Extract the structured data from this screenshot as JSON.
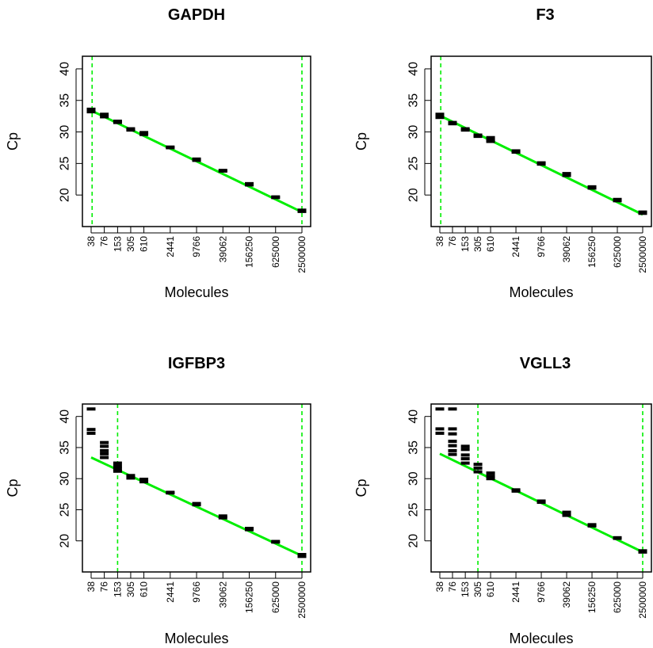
{
  "chart_data": [
    {
      "type": "scatter",
      "title": "GAPDH",
      "xlabel": "Molecules",
      "ylabel": "Cp",
      "x_scale": "log",
      "ylim": [
        15,
        42
      ],
      "y_ticks": [
        20,
        25,
        30,
        35,
        40
      ],
      "x_ticks": [
        "38",
        "76",
        "153",
        "305",
        "610",
        "2441",
        "9766",
        "39062",
        "156250",
        "625000",
        "2500000"
      ],
      "grid": false,
      "series": [
        {
          "type": "scatter",
          "points": [
            [
              38,
              33.6
            ],
            [
              38,
              33.4
            ],
            [
              38,
              33.2
            ],
            [
              76,
              32.8
            ],
            [
              76,
              32.4
            ],
            [
              153,
              31.7
            ],
            [
              153,
              31.5
            ],
            [
              305,
              30.5
            ],
            [
              305,
              30.3
            ],
            [
              610,
              29.9
            ],
            [
              610,
              29.6
            ],
            [
              2441,
              27.6
            ],
            [
              2441,
              27.5
            ],
            [
              9766,
              25.7
            ],
            [
              9766,
              25.5
            ],
            [
              39062,
              23.9
            ],
            [
              39062,
              23.8
            ],
            [
              156250,
              21.8
            ],
            [
              156250,
              21.6
            ],
            [
              625000,
              19.7
            ],
            [
              625000,
              19.6
            ],
            [
              2500000,
              17.6
            ],
            [
              2500000,
              17.4
            ]
          ]
        },
        {
          "type": "line",
          "color": "#00ee00",
          "from": [
            38,
            33.4
          ],
          "to": [
            2500000,
            17.3
          ]
        }
      ],
      "vlines": [
        40,
        2500000
      ],
      "vline_color": "#00ee00"
    },
    {
      "type": "scatter",
      "title": "F3",
      "xlabel": "Molecules",
      "ylabel": "Cp",
      "x_scale": "log",
      "ylim": [
        15,
        42
      ],
      "y_ticks": [
        20,
        25,
        30,
        35,
        40
      ],
      "x_ticks": [
        "38",
        "76",
        "153",
        "305",
        "610",
        "2441",
        "9766",
        "39062",
        "156250",
        "625000",
        "2500000"
      ],
      "grid": false,
      "series": [
        {
          "type": "scatter",
          "points": [
            [
              38,
              32.8
            ],
            [
              38,
              32.5
            ],
            [
              38,
              32.3
            ],
            [
              76,
              31.5
            ],
            [
              76,
              31.3
            ],
            [
              153,
              30.5
            ],
            [
              153,
              30.3
            ],
            [
              305,
              29.5
            ],
            [
              305,
              29.3
            ],
            [
              610,
              29.1
            ],
            [
              610,
              28.7
            ],
            [
              610,
              28.5
            ],
            [
              2441,
              27.0
            ],
            [
              2441,
              26.8
            ],
            [
              9766,
              25.1
            ],
            [
              9766,
              24.9
            ],
            [
              39062,
              23.4
            ],
            [
              39062,
              23.1
            ],
            [
              156250,
              21.3
            ],
            [
              156250,
              21.1
            ],
            [
              625000,
              19.3
            ],
            [
              625000,
              19.1
            ],
            [
              2500000,
              17.3
            ],
            [
              2500000,
              17.1
            ]
          ]
        },
        {
          "type": "line",
          "color": "#00ee00",
          "from": [
            38,
            32.6
          ],
          "to": [
            2500000,
            16.9
          ]
        }
      ],
      "vlines": [
        40
      ],
      "vline_color": "#00ee00"
    },
    {
      "type": "scatter",
      "title": "IGFBP3",
      "xlabel": "Molecules",
      "ylabel": "Cp",
      "x_scale": "log",
      "ylim": [
        15,
        42
      ],
      "y_ticks": [
        20,
        25,
        30,
        35,
        40
      ],
      "x_ticks": [
        "38",
        "76",
        "153",
        "305",
        "610",
        "2441",
        "9766",
        "39062",
        "156250",
        "625000",
        "2500000"
      ],
      "grid": false,
      "series": [
        {
          "type": "scatter",
          "points": [
            [
              38,
              41.2
            ],
            [
              38,
              37.9
            ],
            [
              38,
              37.3
            ],
            [
              76,
              35.8
            ],
            [
              76,
              35.2
            ],
            [
              76,
              34.5
            ],
            [
              76,
              34.0
            ],
            [
              76,
              33.4
            ],
            [
              153,
              32.5
            ],
            [
              153,
              32.0
            ],
            [
              153,
              31.6
            ],
            [
              153,
              31.2
            ],
            [
              305,
              30.5
            ],
            [
              305,
              30.1
            ],
            [
              610,
              29.9
            ],
            [
              610,
              29.5
            ],
            [
              2441,
              27.8
            ],
            [
              2441,
              27.7
            ],
            [
              9766,
              26.0
            ],
            [
              9766,
              25.8
            ],
            [
              39062,
              24.0
            ],
            [
              39062,
              23.7
            ],
            [
              156250,
              22.0
            ],
            [
              156250,
              21.8
            ],
            [
              625000,
              19.9
            ],
            [
              625000,
              19.8
            ],
            [
              2500000,
              17.8
            ],
            [
              2500000,
              17.5
            ]
          ]
        },
        {
          "type": "line",
          "color": "#00ee00",
          "from": [
            38,
            33.4
          ],
          "to": [
            2500000,
            17.6
          ]
        }
      ],
      "vlines": [
        153,
        2500000
      ],
      "vline_color": "#00ee00"
    },
    {
      "type": "scatter",
      "title": "VGLL3",
      "xlabel": "Molecules",
      "ylabel": "Cp",
      "x_scale": "log",
      "ylim": [
        15,
        42
      ],
      "y_ticks": [
        20,
        25,
        30,
        35,
        40
      ],
      "x_ticks": [
        "38",
        "76",
        "153",
        "305",
        "610",
        "2441",
        "9766",
        "39062",
        "156250",
        "625000",
        "2500000"
      ],
      "grid": false,
      "series": [
        {
          "type": "scatter",
          "points": [
            [
              38,
              41.2
            ],
            [
              38,
              38.0
            ],
            [
              38,
              37.3
            ],
            [
              76,
              41.2
            ],
            [
              76,
              38.0
            ],
            [
              76,
              37.2
            ],
            [
              76,
              36.0
            ],
            [
              76,
              35.3
            ],
            [
              76,
              34.5
            ],
            [
              76,
              33.9
            ],
            [
              153,
              35.2
            ],
            [
              153,
              34.7
            ],
            [
              153,
              33.8
            ],
            [
              153,
              33.2
            ],
            [
              153,
              32.5
            ],
            [
              305,
              32.3
            ],
            [
              305,
              31.7
            ],
            [
              305,
              31.1
            ],
            [
              610,
              30.9
            ],
            [
              610,
              30.4
            ],
            [
              610,
              30.0
            ],
            [
              2441,
              28.2
            ],
            [
              2441,
              28.0
            ],
            [
              9766,
              26.4
            ],
            [
              9766,
              26.2
            ],
            [
              39062,
              24.6
            ],
            [
              39062,
              24.1
            ],
            [
              156250,
              22.6
            ],
            [
              156250,
              22.4
            ],
            [
              625000,
              20.5
            ],
            [
              625000,
              20.4
            ],
            [
              2500000,
              18.4
            ],
            [
              2500000,
              18.2
            ]
          ]
        },
        {
          "type": "line",
          "color": "#00ee00",
          "from": [
            38,
            34.0
          ],
          "to": [
            2500000,
            18.2
          ]
        }
      ],
      "vlines": [
        305,
        2500000
      ],
      "vline_color": "#00ee00"
    }
  ]
}
